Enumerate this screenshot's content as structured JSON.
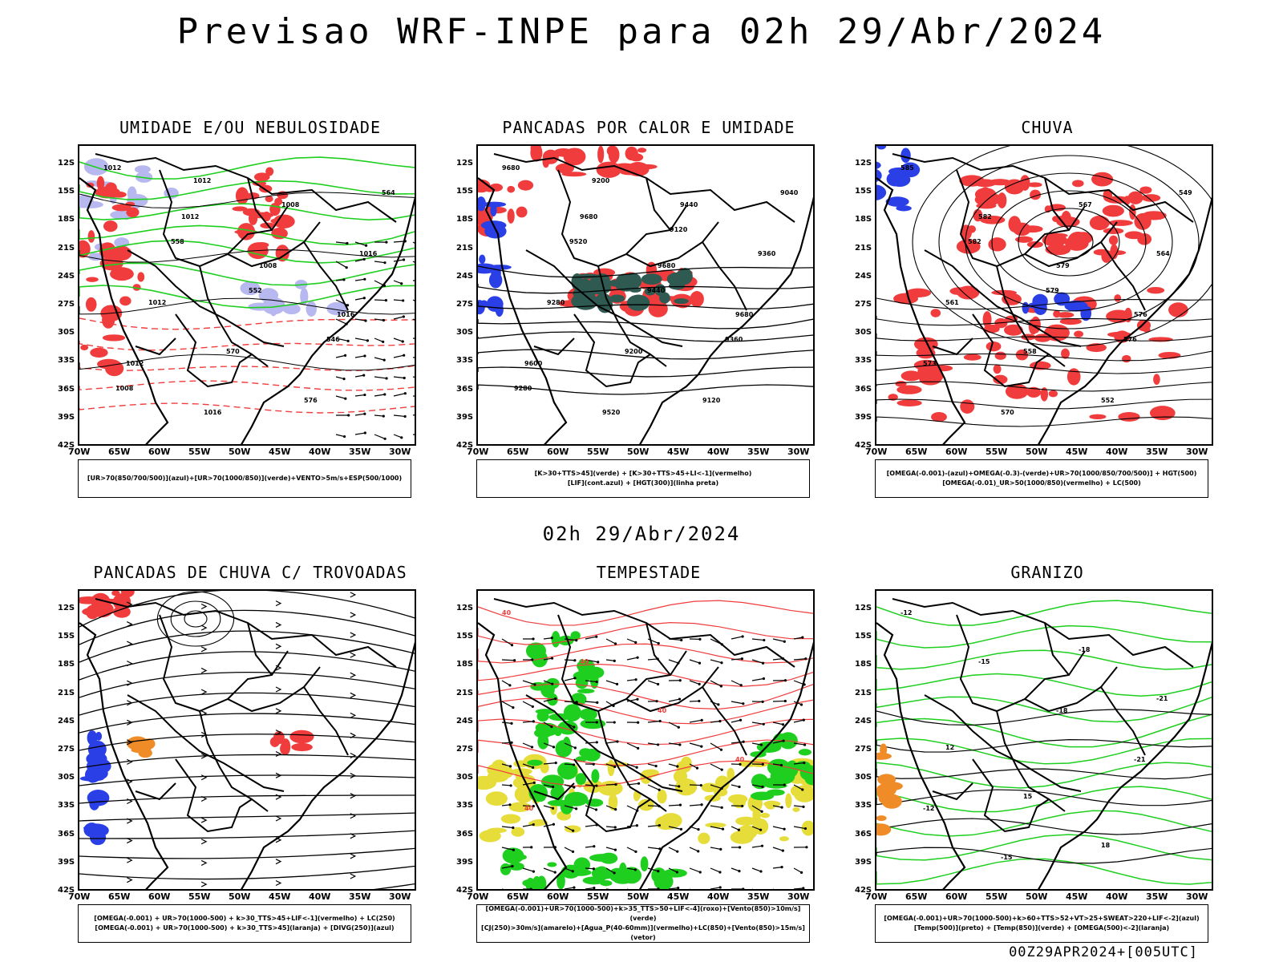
{
  "title": "Previsao WRF-INPE  para 02h 29/Abr/2024",
  "middle_label": "02h 29/Abr/2024",
  "footer": "00Z29APR2024+[005UTC]",
  "lat_labels": [
    "12S",
    "15S",
    "18S",
    "21S",
    "24S",
    "27S",
    "30S",
    "33S",
    "36S",
    "39S",
    "42S"
  ],
  "lon_labels": [
    "70W",
    "65W",
    "60W",
    "55W",
    "50W",
    "45W",
    "40W",
    "35W",
    "30W"
  ],
  "colors": {
    "red": "#f03c3c",
    "green": "#1fcf1f",
    "blue": "#2a3fe6",
    "lavender": "#b8b8f0",
    "darkteal": "#2e5a52",
    "yellow": "#e6dc3a",
    "orange": "#f08c28",
    "black": "#000000"
  },
  "panels": [
    {
      "key": "umidade",
      "title": "UMIDADE E/OU NEBULOSIDADE",
      "legend": [
        "[UR>70(850/700/500)](azul)+[UR>70(1000/850)](verde)+VENTO>5m/s+ESP(500/1000)"
      ],
      "contour_labels": [
        "1012",
        "1012",
        "1008",
        "1016",
        "1012",
        "1016",
        "1008",
        "1016",
        "1012",
        "570",
        "576",
        "564",
        "558",
        "552",
        "546",
        "1008",
        "1012"
      ]
    },
    {
      "key": "pancadas_calor",
      "title": "PANCADAS POR CALOR E UMIDADE",
      "legend": [
        "[K>30+TTS>45](verde) + [K>30+TTS>45+LI<-1](vermelho)",
        "[LIF](cont.azul) + [HGT(300)](linha preta)"
      ],
      "contour_labels": [
        "9680",
        "9680",
        "9680",
        "9680",
        "9600",
        "9520",
        "9440",
        "9360",
        "9280",
        "9200",
        "9120",
        "9040",
        "9520",
        "9440",
        "9360",
        "9280",
        "9200",
        "9120"
      ]
    },
    {
      "key": "chuva",
      "title": "CHUVA",
      "legend": [
        "[OMEGA(-0.001)-(azul)+OMEGA(-0.3)-(verde)+UR>70(1000/850/700/500)] + HGT(500)",
        "[OMEGA(-0.01)_UR>50(1000/850)(vermelho) + LC(500)"
      ],
      "contour_labels": [
        "585",
        "582",
        "579",
        "576",
        "573",
        "570",
        "567",
        "564",
        "561",
        "558",
        "552",
        "549",
        "582",
        "579",
        "576"
      ]
    },
    {
      "key": "trovoadas",
      "title": "PANCADAS DE CHUVA C/ TROVOADAS",
      "legend": [
        "[OMEGA(-0.001) + UR>70(1000-500) + k>30_TTS>45+LIF<-1](vermelho) + LC(250)",
        "[OMEGA(-0.001) + UR>70(1000-500) + k>30_TTS>45](laranja) + [DIVG(250)](azul)"
      ],
      "contour_labels": []
    },
    {
      "key": "tempestade",
      "title": "TEMPESTADE",
      "legend": [
        "[OMEGA(-0.001)+UR>70(1000-500)+k>35_TTS>50+LIF<-4](roxo)+[Vento(850)>10m/s](verde)",
        "[CJ(250)>30m/s](amarelo)+[Agua_P(40-60mm)](vermelho)+LC(850)+[Vento(850)>15m/s](vetor)"
      ],
      "contour_labels": [
        "40",
        "40",
        "40",
        "40",
        "40"
      ]
    },
    {
      "key": "granizo",
      "title": "GRANIZO",
      "legend": [
        "[OMEGA(-0.001)+UR>70(1000-500)+k>60+TTS>52+VT>25+SWEAT>220+LIF<-2](azul)",
        "[Temp(500)](preto) + [Temp(850)](verde) + [OMEGA(500)<-2](laranja)"
      ],
      "contour_labels": [
        "-12",
        "-15",
        "-18",
        "-21",
        "-12",
        "-15",
        "-18",
        "-21",
        "12",
        "15",
        "18"
      ]
    }
  ]
}
